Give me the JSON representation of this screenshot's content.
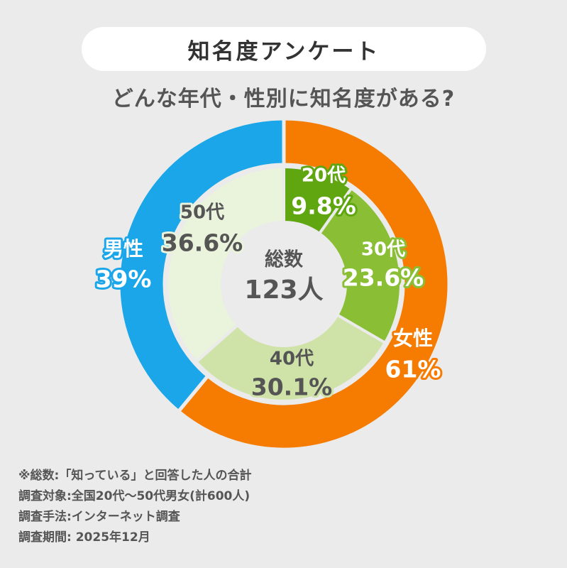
{
  "header": {
    "title": "知名度アンケート",
    "subtitle": "どんな年代・性別に知名度がある?"
  },
  "chart_data": {
    "type": "donut",
    "title": "知名度アンケート",
    "subtitle": "どんな年代・性別に知名度がある?",
    "center": {
      "line1": "総数",
      "line2": "123人"
    },
    "outer_ring": [
      {
        "name": "女性",
        "value": 61,
        "label": "61%",
        "color": "#f57c00"
      },
      {
        "name": "男性",
        "value": 39,
        "label": "39%",
        "color": "#1aa6e8"
      }
    ],
    "inner_ring": [
      {
        "name": "20代",
        "value": 9.8,
        "label": "9.8%",
        "color": "#5fa611"
      },
      {
        "name": "30代",
        "value": 23.6,
        "label": "23.6%",
        "color": "#8abf35"
      },
      {
        "name": "40代",
        "value": 30.1,
        "label": "30.1%",
        "color": "#cfe3a8"
      },
      {
        "name": "50代",
        "value": 36.6,
        "label": "36.6%",
        "color": "#eaf3dc"
      }
    ]
  },
  "notes": [
    "※総数:「知っている」と回答した人の合計",
    "調査対象:全国20代〜50代男女(計600人)",
    "調査手法:インターネット調査",
    "調査期間: 2025年12月"
  ]
}
